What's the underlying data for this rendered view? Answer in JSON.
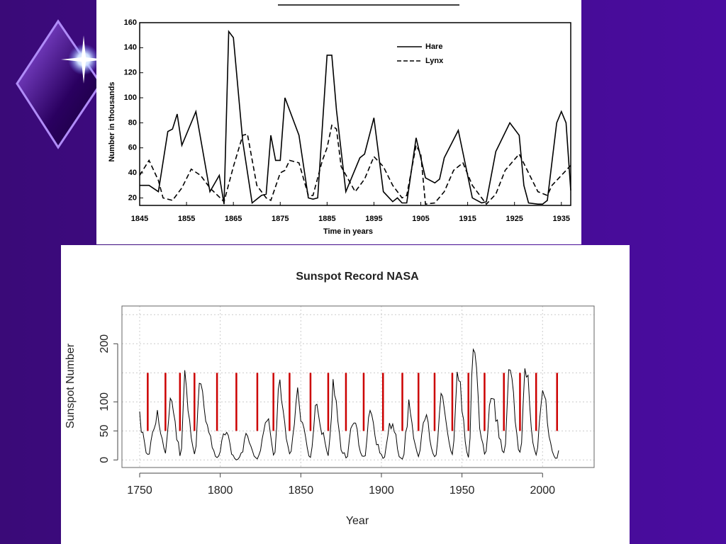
{
  "chart_data": [
    {
      "type": "line",
      "ylabel": "Number in thousands",
      "xlabel": "Time in years",
      "xlim": [
        1845,
        1937
      ],
      "xticks": [
        1845,
        1855,
        1865,
        1875,
        1885,
        1895,
        1905,
        1915,
        1925,
        1935
      ],
      "ylim": [
        14,
        160
      ],
      "yticks": [
        20,
        40,
        60,
        80,
        100,
        120,
        140,
        160
      ],
      "series": [
        {
          "name": "Hare",
          "color": "#000000",
          "style": "solid",
          "x": [
            1845,
            1847,
            1849,
            1851,
            1852,
            1853,
            1854,
            1857,
            1860,
            1862,
            1863,
            1864,
            1865,
            1867,
            1869,
            1871,
            1872,
            1873,
            1874,
            1875,
            1876,
            1879,
            1881,
            1882,
            1883,
            1885,
            1886,
            1887,
            1889,
            1892,
            1893,
            1895,
            1897,
            1899,
            1900,
            1901,
            1902,
            1904,
            1906,
            1908,
            1909,
            1910,
            1913,
            1916,
            1918,
            1919,
            1921,
            1924,
            1926,
            1927,
            1928,
            1930,
            1931,
            1932,
            1934,
            1935,
            1936,
            1937
          ],
          "values": [
            30,
            30,
            25,
            73,
            75,
            87,
            62,
            89,
            25,
            38,
            15,
            153,
            148,
            65,
            16,
            22,
            23,
            70,
            50,
            50,
            100,
            70,
            20,
            19,
            20,
            134,
            134,
            90,
            25,
            52,
            55,
            84,
            25,
            17,
            20,
            16,
            16,
            68,
            36,
            32,
            35,
            52,
            74,
            20,
            16,
            17,
            57,
            80,
            70,
            30,
            16,
            15,
            15,
            18,
            80,
            89,
            80,
            26
          ]
        },
        {
          "name": "Lynx",
          "color": "#000000",
          "style": "dashed",
          "x": [
            1845,
            1847,
            1849,
            1850,
            1852,
            1854,
            1856,
            1858,
            1860,
            1863,
            1865,
            1867,
            1868,
            1870,
            1872,
            1873,
            1875,
            1876,
            1877,
            1879,
            1881,
            1882,
            1884,
            1885,
            1886,
            1887,
            1888,
            1891,
            1893,
            1895,
            1897,
            1899,
            1901,
            1902,
            1904,
            1905,
            1906,
            1908,
            1910,
            1912,
            1914,
            1916,
            1918,
            1919,
            1921,
            1923,
            1926,
            1928,
            1930,
            1932,
            1933,
            1935,
            1937
          ],
          "values": [
            38,
            50,
            34,
            20,
            18,
            28,
            43,
            38,
            28,
            17,
            45,
            70,
            71,
            30,
            20,
            18,
            40,
            42,
            50,
            48,
            22,
            22,
            50,
            60,
            78,
            75,
            45,
            25,
            35,
            53,
            45,
            30,
            20,
            22,
            62,
            55,
            15,
            16,
            25,
            42,
            48,
            30,
            20,
            15,
            23,
            42,
            55,
            40,
            25,
            22,
            30,
            38,
            46
          ]
        }
      ],
      "legend": "top-right"
    },
    {
      "type": "line",
      "title": "Sunspot Record NASA",
      "ylabel": "Sunspot Number",
      "xlabel": "Year",
      "xlim": [
        1739,
        2032
      ],
      "xticks": [
        1750,
        1800,
        1850,
        1900,
        1950,
        2000
      ],
      "ylim": [
        -13,
        265
      ],
      "yticks": [
        0,
        50,
        100,
        200
      ],
      "ygrid": [
        0,
        50,
        100,
        150,
        200,
        250
      ],
      "grid": true,
      "series": [
        {
          "color": "#000000",
          "style": "solid",
          "x": [
            1750,
            1751,
            1752,
            1753,
            1754,
            1755,
            1756,
            1757,
            1758,
            1759,
            1760,
            1761,
            1762,
            1763,
            1764,
            1765,
            1766,
            1767,
            1768,
            1769,
            1770,
            1771,
            1772,
            1773,
            1774,
            1775,
            1776,
            1777,
            1778,
            1779,
            1780,
            1781,
            1782,
            1783,
            1784,
            1785,
            1786,
            1787,
            1788,
            1789,
            1790,
            1791,
            1792,
            1793,
            1794,
            1795,
            1796,
            1797,
            1798,
            1799,
            1800,
            1801,
            1802,
            1803,
            1804,
            1805,
            1806,
            1807,
            1808,
            1809,
            1810,
            1811,
            1812,
            1813,
            1814,
            1815,
            1816,
            1817,
            1818,
            1819,
            1820,
            1821,
            1822,
            1823,
            1824,
            1825,
            1826,
            1827,
            1828,
            1829,
            1830,
            1831,
            1832,
            1833,
            1834,
            1835,
            1836,
            1837,
            1838,
            1839,
            1840,
            1841,
            1842,
            1843,
            1844,
            1845,
            1846,
            1847,
            1848,
            1849,
            1850,
            1851,
            1852,
            1853,
            1854,
            1855,
            1856,
            1857,
            1858,
            1859,
            1860,
            1861,
            1862,
            1863,
            1864,
            1865,
            1866,
            1867,
            1868,
            1869,
            1870,
            1871,
            1872,
            1873,
            1874,
            1875,
            1876,
            1877,
            1878,
            1879,
            1880,
            1881,
            1882,
            1883,
            1884,
            1885,
            1886,
            1887,
            1888,
            1889,
            1890,
            1891,
            1892,
            1893,
            1894,
            1895,
            1896,
            1897,
            1898,
            1899,
            1900,
            1901,
            1902,
            1903,
            1904,
            1905,
            1906,
            1907,
            1908,
            1909,
            1910,
            1911,
            1912,
            1913,
            1914,
            1915,
            1916,
            1917,
            1918,
            1919,
            1920,
            1921,
            1922,
            1923,
            1924,
            1925,
            1926,
            1927,
            1928,
            1929,
            1930,
            1931,
            1932,
            1933,
            1934,
            1935,
            1936,
            1937,
            1938,
            1939,
            1940,
            1941,
            1942,
            1943,
            1944,
            1945,
            1946,
            1947,
            1948,
            1949,
            1950,
            1951,
            1952,
            1953,
            1954,
            1955,
            1956,
            1957,
            1958,
            1959,
            1960,
            1961,
            1962,
            1963,
            1964,
            1965,
            1966,
            1967,
            1968,
            1969,
            1970,
            1971,
            1972,
            1973,
            1974,
            1975,
            1976,
            1977,
            1978,
            1979,
            1980,
            1981,
            1982,
            1983,
            1984,
            1985,
            1986,
            1987,
            1988,
            1989,
            1990,
            1991,
            1992,
            1993,
            1994,
            1995,
            1996,
            1997,
            1998,
            1999,
            2000,
            2001,
            2002,
            2003,
            2004,
            2005,
            2006,
            2007,
            2008,
            2009,
            2010
          ],
          "values": [
            83.4,
            47.7,
            47.8,
            30.7,
            12.2,
            9.6,
            10.2,
            32.4,
            47.6,
            54.0,
            62.9,
            85.9,
            61.2,
            45.1,
            36.4,
            20.9,
            11.4,
            37.8,
            69.8,
            106.1,
            100.8,
            81.6,
            66.5,
            34.8,
            30.6,
            7.0,
            19.8,
            92.5,
            154.4,
            125.9,
            84.8,
            68.1,
            38.5,
            22.8,
            10.2,
            24.1,
            82.9,
            132.0,
            130.9,
            118.1,
            89.9,
            66.6,
            60.0,
            46.9,
            41.0,
            21.3,
            16.0,
            6.4,
            4.1,
            6.8,
            14.5,
            34.0,
            45.0,
            43.1,
            47.5,
            42.2,
            28.1,
            10.1,
            8.1,
            2.5,
            0.0,
            1.4,
            5.0,
            12.2,
            13.9,
            35.4,
            45.8,
            41.0,
            30.1,
            23.9,
            15.6,
            6.6,
            4.0,
            1.8,
            8.5,
            16.6,
            36.3,
            49.6,
            64.2,
            67.0,
            70.9,
            47.8,
            27.5,
            8.5,
            13.2,
            56.9,
            121.5,
            138.3,
            103.2,
            85.7,
            64.6,
            36.7,
            24.2,
            10.7,
            15.0,
            40.1,
            61.5,
            98.5,
            124.7,
            96.3,
            66.6,
            64.5,
            54.1,
            39.0,
            20.6,
            6.7,
            4.3,
            22.7,
            54.8,
            93.8,
            95.8,
            77.2,
            59.1,
            44.0,
            47.0,
            30.5,
            16.3,
            7.3,
            37.6,
            74.0,
            139.0,
            111.2,
            101.6,
            66.2,
            44.7,
            17.0,
            11.3,
            12.4,
            3.4,
            6.0,
            32.3,
            54.3,
            59.7,
            63.7,
            63.5,
            52.2,
            25.4,
            13.1,
            6.8,
            6.3,
            7.1,
            35.6,
            73.0,
            85.1,
            78.0,
            64.0,
            41.8,
            26.2,
            26.7,
            12.1,
            9.5,
            2.7,
            5.0,
            24.4,
            42.0,
            63.5,
            53.8,
            62.0,
            48.5,
            43.9,
            18.6,
            5.7,
            3.6,
            1.4,
            9.6,
            47.4,
            57.1,
            103.9,
            80.6,
            63.6,
            37.6,
            26.1,
            14.2,
            5.8,
            16.7,
            44.3,
            63.9,
            69.0,
            77.8,
            64.9,
            35.7,
            21.2,
            11.1,
            5.7,
            8.7,
            36.1,
            79.7,
            114.4,
            109.6,
            88.8,
            67.8,
            47.5,
            30.6,
            16.3,
            9.6,
            33.2,
            92.6,
            151.6,
            136.3,
            134.7,
            83.9,
            69.4,
            31.5,
            13.9,
            4.4,
            38.0,
            141.7,
            190.2,
            184.8,
            159.0,
            112.3,
            53.9,
            37.6,
            27.9,
            10.2,
            15.1,
            47.0,
            93.8,
            105.9,
            105.5,
            104.5,
            66.6,
            68.9,
            38.0,
            34.5,
            15.5,
            12.6,
            27.5,
            92.5,
            155.4,
            154.6,
            140.4,
            115.9,
            66.6,
            45.9,
            17.9,
            13.4,
            29.4,
            100.2,
            157.6,
            142.6,
            145.7,
            94.3,
            54.6,
            29.9,
            17.5,
            8.6,
            21.5,
            64.3,
            93.3,
            119.6,
            111.0,
            104.0,
            63.7,
            40.4,
            29.8,
            15.2,
            7.5,
            2.9,
            3.1,
            16.5
          ]
        }
      ],
      "segments": {
        "color": "#cc0000",
        "y_from": 50,
        "y_to": 150,
        "x": [
          1755,
          1766,
          1775,
          1784,
          1798,
          1810,
          1823,
          1833,
          1843,
          1856,
          1867,
          1878,
          1889,
          1901,
          1913,
          1923,
          1933,
          1944,
          1954,
          1964,
          1976,
          1986,
          1996,
          2009
        ]
      }
    }
  ]
}
